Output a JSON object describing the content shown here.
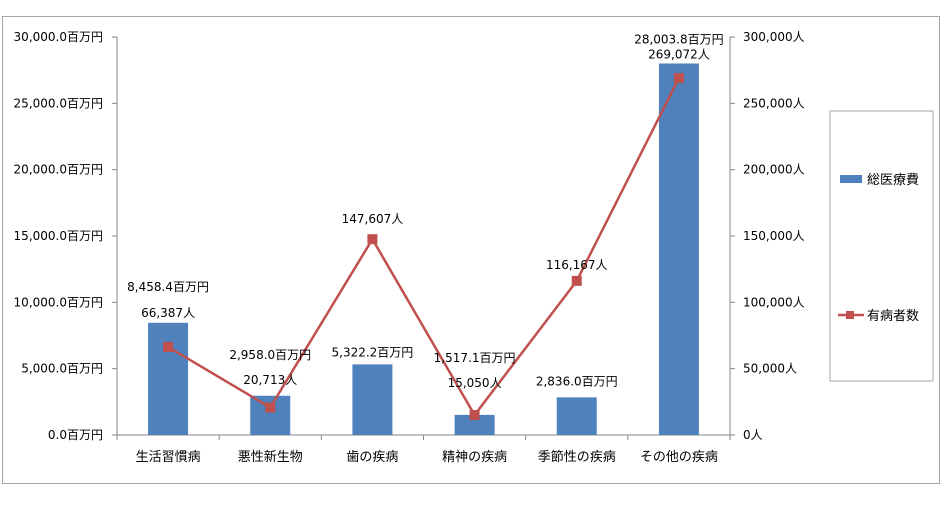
{
  "chart_data": {
    "type": "bar",
    "categories": [
      "生活習慣病",
      "悪性新生物",
      "歯の疾病",
      "精神の疾病",
      "季節性の疾病",
      "その他の疾病"
    ],
    "series": [
      {
        "name": "総医療費",
        "type": "bar",
        "axis": "left",
        "color": "#4f81bd",
        "values": [
          8458.4,
          2958.0,
          5322.2,
          1517.1,
          2836.0,
          28003.8
        ],
        "labels": [
          "8,458.4百万円",
          "2,958.0百万円",
          "5,322.2百万円",
          "1,517.1百万円",
          "2,836.0百万円",
          "28,003.8百万円"
        ]
      },
      {
        "name": "有病者数",
        "type": "line",
        "axis": "right",
        "color": "#c0504d",
        "marker": "square",
        "values": [
          66387,
          20713,
          147607,
          15050,
          116167,
          269072
        ],
        "labels": [
          "66,387人",
          "20,713人",
          "147,607人",
          "15,050人",
          "116,167人",
          "269,072人"
        ]
      }
    ],
    "y_left": {
      "ylim": [
        0,
        30000
      ],
      "ticks": [
        "0.0百万円",
        "5,000.0百万円",
        "10,000.0百万円",
        "15,000.0百万円",
        "20,000.0百万円",
        "25,000.0百万円",
        "30,000.0百万円"
      ]
    },
    "y_right": {
      "ylim": [
        0,
        300000
      ],
      "ticks": [
        "0人",
        "50,000人",
        "100,000人",
        "150,000人",
        "200,000人",
        "250,000人",
        "300,000人"
      ]
    },
    "grid": false,
    "legend_position": "right"
  }
}
